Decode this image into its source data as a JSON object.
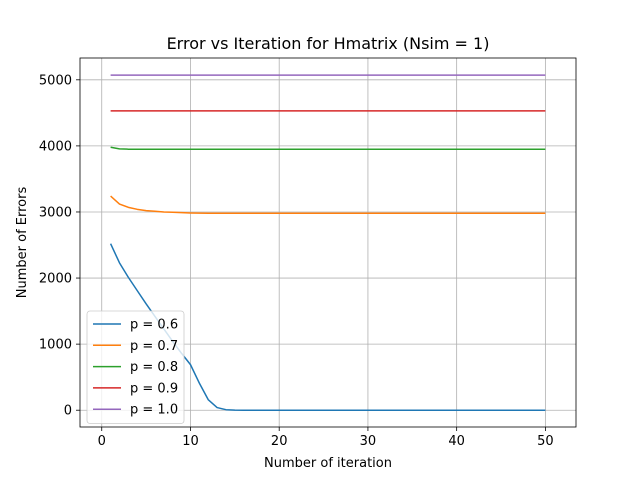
{
  "chart_data": {
    "type": "line",
    "title": "Error vs Iteration for Hmatrix (Nsim = 1)",
    "xlabel": "Number of iteration",
    "ylabel": "Number of Errors",
    "xlim": [
      -2.45,
      53.45
    ],
    "ylim": [
      -254,
      5330
    ],
    "xticks": [
      0,
      10,
      20,
      30,
      40,
      50
    ],
    "yticks": [
      0,
      1000,
      2000,
      3000,
      4000,
      5000
    ],
    "grid": true,
    "legend_position": "lower-left",
    "x": [
      1,
      2,
      3,
      4,
      5,
      6,
      7,
      8,
      9,
      10,
      11,
      12,
      13,
      14,
      15,
      16,
      17,
      18,
      19,
      20,
      21,
      22,
      23,
      24,
      25,
      26,
      27,
      28,
      29,
      30,
      31,
      32,
      33,
      34,
      35,
      36,
      37,
      38,
      39,
      40,
      41,
      42,
      43,
      44,
      45,
      46,
      47,
      48,
      49,
      50
    ],
    "series": [
      {
        "name": "p = 0.6",
        "color": "#1f77b4",
        "values": [
          2520,
          2230,
          2010,
          1810,
          1610,
          1420,
          1230,
          1040,
          860,
          690,
          410,
          160,
          40,
          8,
          2,
          0,
          0,
          0,
          0,
          0,
          0,
          0,
          0,
          0,
          0,
          0,
          0,
          0,
          0,
          0,
          0,
          0,
          0,
          0,
          0,
          0,
          0,
          0,
          0,
          0,
          0,
          0,
          0,
          0,
          0,
          0,
          0,
          0,
          0,
          0
        ]
      },
      {
        "name": "p = 0.7",
        "color": "#ff7f0e",
        "values": [
          3240,
          3120,
          3070,
          3040,
          3020,
          3010,
          3000,
          2995,
          2990,
          2985,
          2982,
          2980,
          2980,
          2980,
          2980,
          2980,
          2980,
          2980,
          2980,
          2980,
          2980,
          2980,
          2980,
          2980,
          2980,
          2980,
          2980,
          2980,
          2980,
          2980,
          2980,
          2980,
          2980,
          2980,
          2980,
          2980,
          2980,
          2980,
          2980,
          2980,
          2980,
          2980,
          2980,
          2980,
          2980,
          2980,
          2980,
          2980,
          2980,
          2980
        ]
      },
      {
        "name": "p = 0.8",
        "color": "#2ca02c",
        "values": [
          3980,
          3955,
          3950,
          3950,
          3950,
          3950,
          3950,
          3950,
          3950,
          3950,
          3950,
          3950,
          3950,
          3950,
          3950,
          3950,
          3950,
          3950,
          3950,
          3950,
          3950,
          3950,
          3950,
          3950,
          3950,
          3950,
          3950,
          3950,
          3950,
          3950,
          3950,
          3950,
          3950,
          3950,
          3950,
          3950,
          3950,
          3950,
          3950,
          3950,
          3950,
          3950,
          3950,
          3950,
          3950,
          3950,
          3950,
          3950,
          3950,
          3950
        ]
      },
      {
        "name": "p = 0.9",
        "color": "#d62728",
        "values": [
          4530,
          4530,
          4530,
          4530,
          4530,
          4530,
          4530,
          4530,
          4530,
          4530,
          4530,
          4530,
          4530,
          4530,
          4530,
          4530,
          4530,
          4530,
          4530,
          4530,
          4530,
          4530,
          4530,
          4530,
          4530,
          4530,
          4530,
          4530,
          4530,
          4530,
          4530,
          4530,
          4530,
          4530,
          4530,
          4530,
          4530,
          4530,
          4530,
          4530,
          4530,
          4530,
          4530,
          4530,
          4530,
          4530,
          4530,
          4530,
          4530,
          4530
        ]
      },
      {
        "name": "p = 1.0",
        "color": "#9467bd",
        "values": [
          5070,
          5070,
          5070,
          5070,
          5070,
          5070,
          5070,
          5070,
          5070,
          5070,
          5070,
          5070,
          5070,
          5070,
          5070,
          5070,
          5070,
          5070,
          5070,
          5070,
          5070,
          5070,
          5070,
          5070,
          5070,
          5070,
          5070,
          5070,
          5070,
          5070,
          5070,
          5070,
          5070,
          5070,
          5070,
          5070,
          5070,
          5070,
          5070,
          5070,
          5070,
          5070,
          5070,
          5070,
          5070,
          5070,
          5070,
          5070,
          5070,
          5070
        ]
      }
    ]
  }
}
